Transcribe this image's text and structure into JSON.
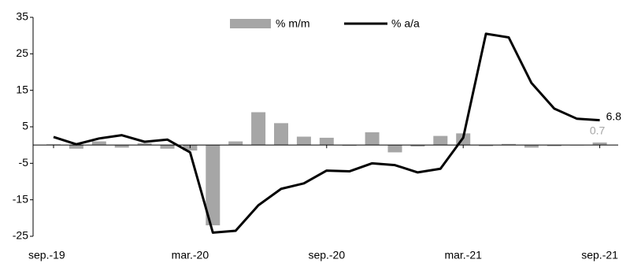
{
  "chart_data": {
    "type": "bar-line",
    "categories": [
      "sep.-19",
      null,
      null,
      null,
      null,
      null,
      "mar.-20",
      null,
      null,
      null,
      null,
      null,
      "sep.-20",
      null,
      null,
      null,
      null,
      null,
      "mar.-21",
      null,
      null,
      null,
      null,
      null,
      "sep.-21"
    ],
    "series": [
      {
        "name": "% m/m",
        "type": "bar",
        "color": "#a6a6a6",
        "values": [
          0.2,
          -1,
          1,
          -0.7,
          0.5,
          -1,
          -1.5,
          -22,
          1,
          9,
          6,
          2.3,
          2,
          -0.2,
          3.5,
          -2,
          -0.4,
          2.5,
          3.2,
          -0.3,
          0.3,
          -0.7,
          -0.3,
          -0.1,
          0.7
        ]
      },
      {
        "name": "% a/a",
        "type": "line",
        "color": "#000000",
        "values": [
          2.2,
          0.2,
          1.8,
          2.7,
          0.9,
          1.5,
          -2,
          -24,
          -23.5,
          -16.5,
          -12,
          -10.5,
          -7,
          -7.2,
          -5,
          -5.5,
          -7.5,
          -6.5,
          2,
          30.5,
          29.5,
          17,
          10,
          7.2,
          6.8
        ]
      }
    ],
    "ylim": [
      -25,
      35
    ],
    "yticks": [
      -25,
      -15,
      -5,
      5,
      15,
      25,
      35
    ],
    "legend": "top"
  }
}
